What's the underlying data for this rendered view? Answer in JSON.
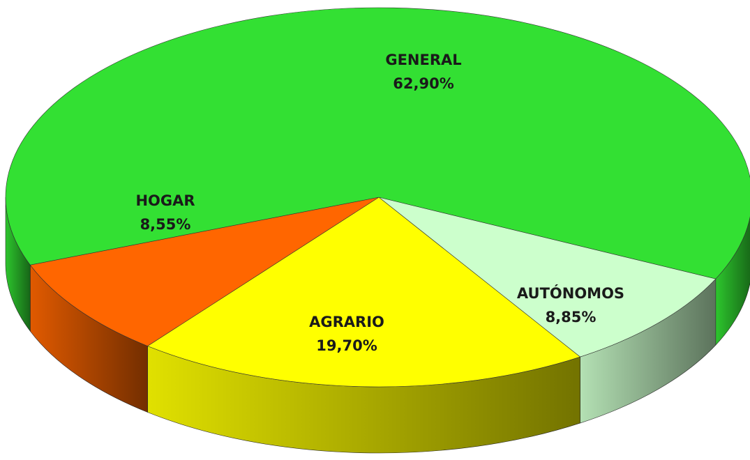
{
  "chart_data": {
    "type": "pie",
    "categories": [
      "AUTÓNOMOS",
      "AGRARIO",
      "HOGAR",
      "GENERAL"
    ],
    "values": [
      8.85,
      19.7,
      8.55,
      62.9
    ],
    "value_labels": [
      "8,85%",
      "19,70%",
      "8,55%",
      "62,90%"
    ],
    "colors": [
      "#ccffcc",
      "#ffff00",
      "#ff6600",
      "#33e033"
    ]
  }
}
